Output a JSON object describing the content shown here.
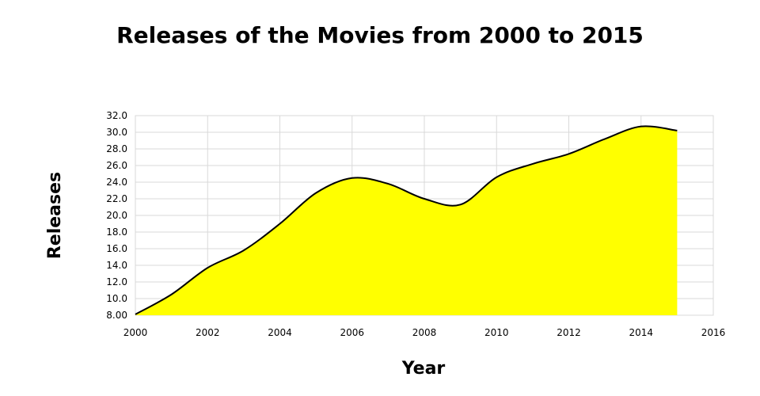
{
  "chart_data": {
    "type": "area",
    "title": "Releases of the Movies from 2000 to 2015",
    "xlabel": "Year",
    "ylabel": "Releases",
    "x": [
      2000,
      2001,
      2002,
      2003,
      2004,
      2005,
      2006,
      2007,
      2008,
      2009,
      2010,
      2011,
      2012,
      2013,
      2014,
      2015
    ],
    "series": [
      {
        "values": [
          8.1,
          10.5,
          13.7,
          15.8,
          19.0,
          22.7,
          24.5,
          23.8,
          22.0,
          21.3,
          24.6,
          26.2,
          27.4,
          29.2,
          30.7,
          30.2
        ],
        "color": "#ffff00",
        "line_color": "#000000"
      }
    ],
    "xlim": [
      2000,
      2016
    ],
    "ylim": [
      8,
      32
    ],
    "x_ticks": [
      "2000",
      "2002",
      "2004",
      "2006",
      "2008",
      "2010",
      "2012",
      "2014",
      "2016"
    ],
    "y_ticks": [
      "8.00",
      "10.0",
      "12.0",
      "14.0",
      "16.0",
      "18.0",
      "20.0",
      "22.0",
      "24.0",
      "26.0",
      "28.0",
      "30.0",
      "32.0"
    ],
    "grid": true,
    "smooth": true,
    "legend": "none"
  }
}
